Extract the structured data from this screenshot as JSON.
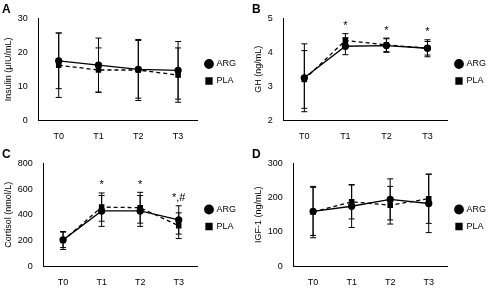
{
  "chart_data": [
    {
      "type": "line",
      "title": "A",
      "y_label": "Insulin (μIU/mL)",
      "categories": [
        "T0",
        "T1",
        "T2",
        "T3"
      ],
      "series": [
        {
          "name": "ARG",
          "color": "#000000",
          "marker": "circle",
          "line_style": "solid",
          "values": [
            17.5,
            16.2,
            15.0,
            14.7
          ],
          "errors": [
            8.2,
            8.0,
            8.5,
            8.5
          ]
        },
        {
          "name": "PLA",
          "color": "#000000",
          "marker": "square",
          "line_style": "dashed",
          "values": [
            16.2,
            14.8,
            14.8,
            13.3
          ],
          "errors": [
            9.5,
            6.5,
            9.0,
            8.0
          ]
        }
      ],
      "ylim": [
        0,
        30
      ],
      "yticks": [
        0,
        10,
        20,
        30
      ],
      "grid": false,
      "legend": "right"
    },
    {
      "type": "line",
      "title": "B",
      "y_label": "GH (ng/mL)",
      "categories": [
        "T0",
        "T1",
        "T2",
        "T3"
      ],
      "series": [
        {
          "name": "ARG",
          "color": "#000000",
          "marker": "circle",
          "line_style": "solid",
          "values": [
            3.25,
            4.18,
            4.2,
            4.12
          ],
          "errors": [
            1.0,
            0.25,
            0.2,
            0.2
          ]
        },
        {
          "name": "PLA",
          "color": "#000000",
          "marker": "square",
          "line_style": "dashed",
          "values": [
            3.2,
            4.35,
            4.22,
            4.12
          ],
          "errors": [
            0.85,
            0.2,
            0.2,
            0.25
          ]
        }
      ],
      "ylim": [
        2,
        5
      ],
      "yticks": [
        2,
        3,
        4,
        5
      ],
      "grid": false,
      "legend": "right",
      "annotations": [
        {
          "category": "T1",
          "text": "*"
        },
        {
          "category": "T2",
          "text": "*"
        },
        {
          "category": "T3",
          "text": "*"
        }
      ]
    },
    {
      "type": "line",
      "title": "C",
      "y_label": "Cortisol (nmol/L)",
      "categories": [
        "T0",
        "T1",
        "T2",
        "T3"
      ],
      "series": [
        {
          "name": "ARG",
          "color": "#000000",
          "marker": "circle",
          "line_style": "solid",
          "values": [
            205,
            430,
            430,
            360
          ],
          "errors": [
            60,
            120,
            120,
            110
          ]
        },
        {
          "name": "PLA",
          "color": "#000000",
          "marker": "square",
          "line_style": "dashed",
          "values": [
            200,
            460,
            455,
            315
          ],
          "errors": [
            70,
            110,
            120,
            100
          ]
        }
      ],
      "ylim": [
        0,
        800
      ],
      "yticks": [
        0,
        200,
        400,
        600,
        800
      ],
      "grid": false,
      "legend": "right",
      "annotations": [
        {
          "category": "T1",
          "text": "*"
        },
        {
          "category": "T2",
          "text": "*"
        },
        {
          "category": "T3",
          "text": "*,#"
        }
      ]
    },
    {
      "type": "line",
      "title": "D",
      "y_label": "IGF-1 (ng/mL)",
      "categories": [
        "T0",
        "T1",
        "T2",
        "T3"
      ],
      "series": [
        {
          "name": "ARG",
          "color": "#000000",
          "marker": "circle",
          "line_style": "solid",
          "values": [
            160,
            175,
            195,
            183
          ],
          "errors": [
            70,
            62,
            60,
            85
          ]
        },
        {
          "name": "PLA",
          "color": "#000000",
          "marker": "square",
          "line_style": "dashed",
          "values": [
            158,
            188,
            178,
            197
          ],
          "errors": [
            75,
            50,
            55,
            72
          ]
        }
      ],
      "ylim": [
        0,
        300
      ],
      "yticks": [
        0,
        100,
        200,
        300
      ],
      "grid": false,
      "legend": "right"
    }
  ]
}
